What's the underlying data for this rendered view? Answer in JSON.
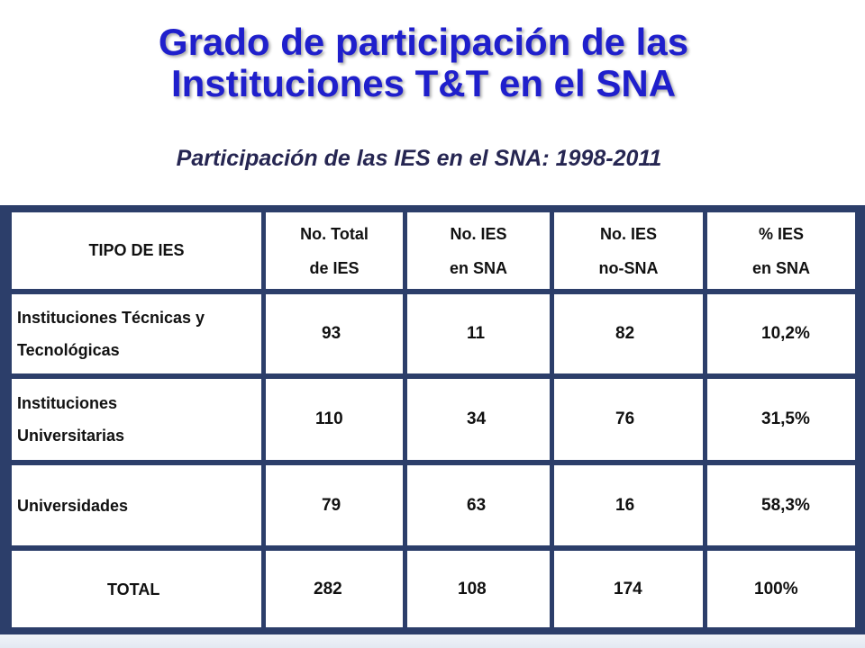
{
  "title": {
    "line1": "Grado de participación de las",
    "line2": "Instituciones T&T en el SNA"
  },
  "subtitle": "Participación de las IES en el SNA: 1998-2011",
  "table": {
    "headers": {
      "tipo": "TIPO DE IES",
      "total_l1": "No. Total",
      "total_l2": "de IES",
      "en_sna_l1": "No. IES",
      "en_sna_l2": "en SNA",
      "no_sna_l1": "No. IES",
      "no_sna_l2": "no-SNA",
      "pct_l1": "% IES",
      "pct_l2": "en SNA"
    },
    "rows": [
      {
        "label_l1": "Instituciones Técnicas y",
        "label_l2": "Tecnológicas",
        "total": "93",
        "en_sna": "11",
        "no_sna": "82",
        "pct": "10,2%"
      },
      {
        "label_l1": "Instituciones",
        "label_l2": "Universitarias",
        "total": "110",
        "en_sna": "34",
        "no_sna": "76",
        "pct": "31,5%"
      },
      {
        "label_l1": "Universidades",
        "label_l2": "",
        "total": "79",
        "en_sna": "63",
        "no_sna": "16",
        "pct": "58,3%"
      },
      {
        "label_l1": "TOTAL",
        "label_l2": "",
        "total": "282",
        "en_sna": "108",
        "no_sna": "174",
        "pct": "100%"
      }
    ]
  },
  "colors": {
    "title": "#1f1fcc",
    "subtitle": "#262652",
    "table_border": "#2c3e6a"
  }
}
